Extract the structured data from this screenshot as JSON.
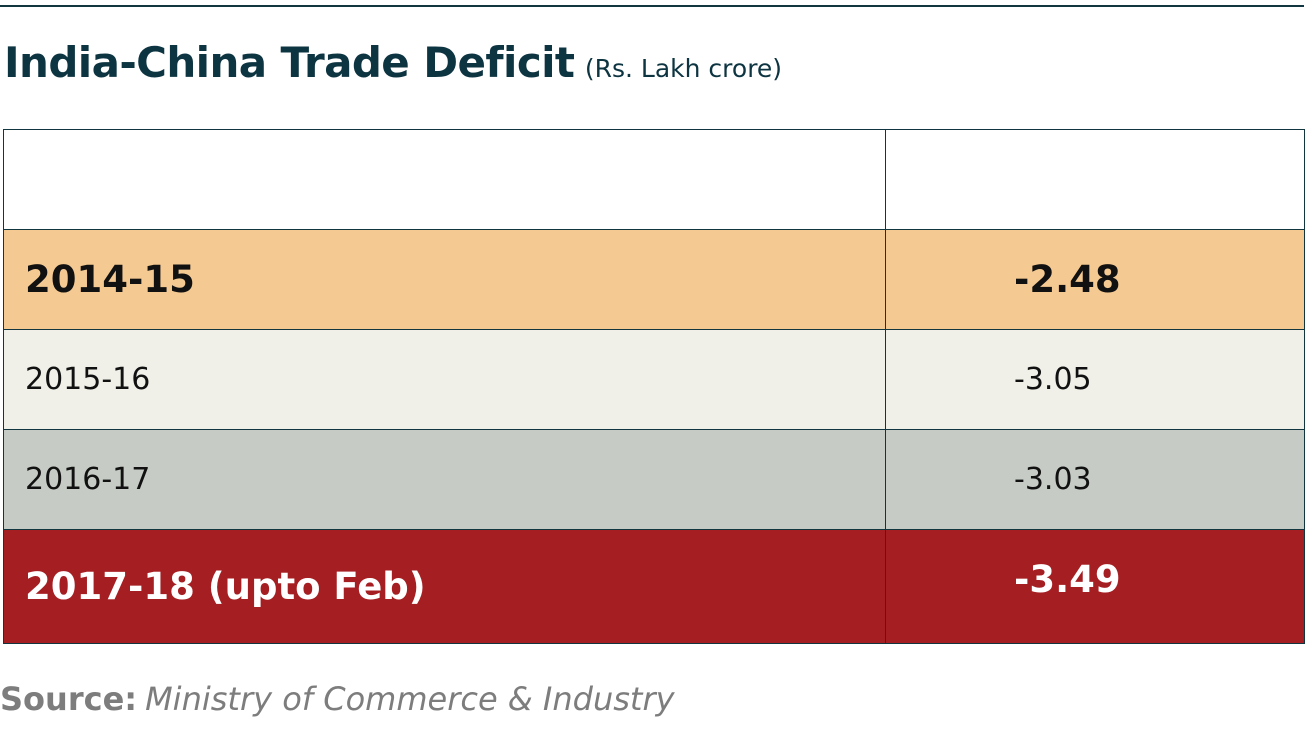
{
  "chart_data": {
    "type": "table",
    "title": "India-China Trade Deficit",
    "unit": "(Rs. Lakh crore)",
    "columns": [
      "",
      ""
    ],
    "rows": [
      {
        "period": "2014-15",
        "value": "-2.48"
      },
      {
        "period": "2015-16",
        "value": "-3.05"
      },
      {
        "period": "2016-17",
        "value": "-3.03"
      },
      {
        "period": "2017-18 (upto Feb)",
        "value": "-3.49"
      }
    ],
    "colors": {
      "title": "#0d3441",
      "row_2014_15": "#f5c992",
      "row_2015_16": "#f0f0e8",
      "row_2016_17": "#c6ccc5",
      "row_2017_18": "#a51e22"
    }
  },
  "source": {
    "label": "Source:",
    "text": "Ministry of Commerce & Industry"
  }
}
